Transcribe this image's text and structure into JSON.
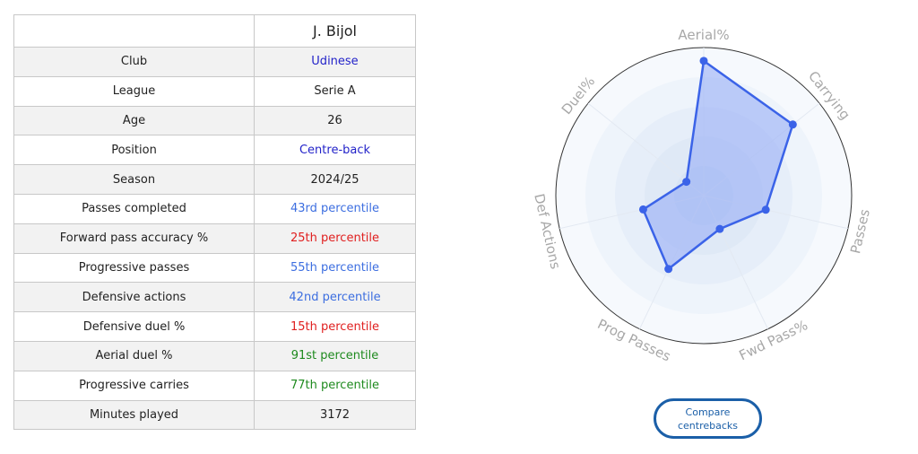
{
  "player": {
    "name": "J. Bijol",
    "rows": [
      {
        "label": "Club",
        "value": "Udinese",
        "color": "#2323c9"
      },
      {
        "label": "League",
        "value": "Serie A",
        "color": "#222222"
      },
      {
        "label": "Age",
        "value": "26",
        "color": "#222222"
      },
      {
        "label": "Position",
        "value": "Centre-back",
        "color": "#2323c9"
      },
      {
        "label": "Season",
        "value": "2024/25",
        "color": "#222222"
      },
      {
        "label": "Passes completed",
        "value": "43rd percentile",
        "color": "#3c6ee0"
      },
      {
        "label": "Forward pass accuracy %",
        "value": "25th percentile",
        "color": "#e02020"
      },
      {
        "label": "Progressive passes",
        "value": "55th percentile",
        "color": "#3c6ee0"
      },
      {
        "label": "Defensive actions",
        "value": "42nd percentile",
        "color": "#3c6ee0"
      },
      {
        "label": "Defensive duel %",
        "value": "15th percentile",
        "color": "#e02020"
      },
      {
        "label": "Aerial duel %",
        "value": "91st percentile",
        "color": "#1e8a1e"
      },
      {
        "label": "Progressive carries",
        "value": "77th percentile",
        "color": "#1e8a1e"
      },
      {
        "label": "Minutes played",
        "value": "3172",
        "color": "#222222"
      }
    ]
  },
  "chart_data": {
    "type": "radar",
    "axes": [
      "Aerial%",
      "Carrying",
      "Passes",
      "Fwd Pass%",
      "Prog Passes",
      "Def Actions",
      "Duel%"
    ],
    "values": [
      91,
      77,
      43,
      25,
      55,
      42,
      15
    ],
    "range": [
      0,
      100
    ],
    "colors": {
      "line": "#3b63e8",
      "fill": "#8fa8f5",
      "grid": "#e3e9f2",
      "label": "#a8a8a8"
    }
  },
  "compare": {
    "label": "Compare centrebacks"
  }
}
